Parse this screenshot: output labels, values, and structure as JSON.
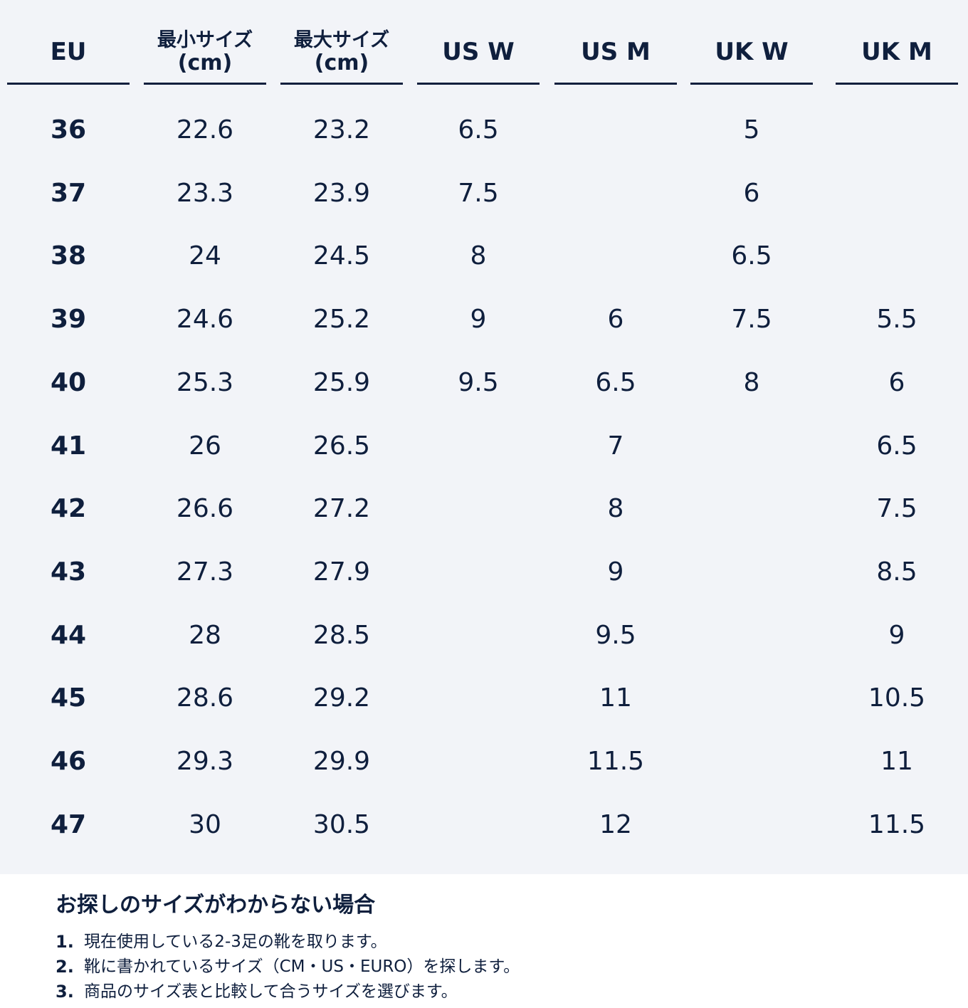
{
  "headers": [
    {
      "line1": "EU",
      "line2": ""
    },
    {
      "line1": "最小サイズ",
      "line2": "(cm)"
    },
    {
      "line1": "最大サイズ",
      "line2": "(cm)"
    },
    {
      "line1": "US W",
      "line2": ""
    },
    {
      "line1": "US M",
      "line2": ""
    },
    {
      "line1": "UK W",
      "line2": ""
    },
    {
      "line1": "UK M",
      "line2": ""
    }
  ],
  "rows": [
    [
      "36",
      "22.6",
      "23.2",
      "6.5",
      "",
      "5",
      ""
    ],
    [
      "37",
      "23.3",
      "23.9",
      "7.5",
      "",
      "6",
      ""
    ],
    [
      "38",
      "24",
      "24.5",
      "8",
      "",
      "6.5",
      ""
    ],
    [
      "39",
      "24.6",
      "25.2",
      "9",
      "6",
      "7.5",
      "5.5"
    ],
    [
      "40",
      "25.3",
      "25.9",
      "9.5",
      "6.5",
      "8",
      "6"
    ],
    [
      "41",
      "26",
      "26.5",
      "",
      "7",
      "",
      "6.5"
    ],
    [
      "42",
      "26.6",
      "27.2",
      "",
      "8",
      "",
      "7.5"
    ],
    [
      "43",
      "27.3",
      "27.9",
      "",
      "9",
      "",
      "8.5"
    ],
    [
      "44",
      "28",
      "28.5",
      "",
      "9.5",
      "",
      "9"
    ],
    [
      "45",
      "28.6",
      "29.2",
      "",
      "11",
      "",
      "10.5"
    ],
    [
      "46",
      "29.3",
      "29.9",
      "",
      "11.5",
      "",
      "11"
    ],
    [
      "47",
      "30",
      "30.5",
      "",
      "12",
      "",
      "11.5"
    ]
  ],
  "help": {
    "title": "お探しのサイズがわからない場合",
    "steps": [
      {
        "num": "1.",
        "text": "現在使用している2-3足の靴を取ります。"
      },
      {
        "num": "2.",
        "text": "靴に書かれているサイズ（CM・US・EURO）を探します。"
      },
      {
        "num": "3.",
        "text": "商品のサイズ表と比較して合うサイズを選びます。"
      }
    ]
  },
  "colors": {
    "text": "#0f1f3d",
    "table_background": "#f2f4f8",
    "page_background": "#ffffff"
  }
}
